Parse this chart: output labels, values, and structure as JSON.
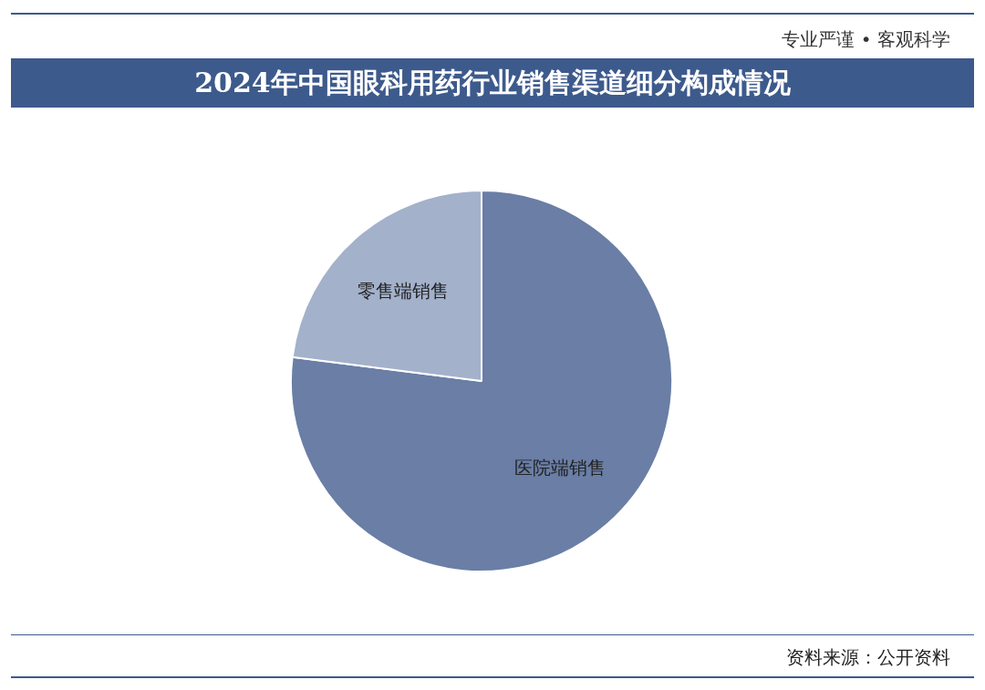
{
  "chart_data": {
    "type": "pie",
    "title": "2024年中国眼科用药行业销售渠道细分构成情况",
    "categories": [
      "医院端销售",
      "零售端销售"
    ],
    "values": [
      77,
      23
    ],
    "colors": [
      "#6a7ea6",
      "#a3b1cb"
    ],
    "legend": false,
    "annotations": [
      "专业严谨 • 客观科学",
      "资料来源：公开资料"
    ]
  }
}
